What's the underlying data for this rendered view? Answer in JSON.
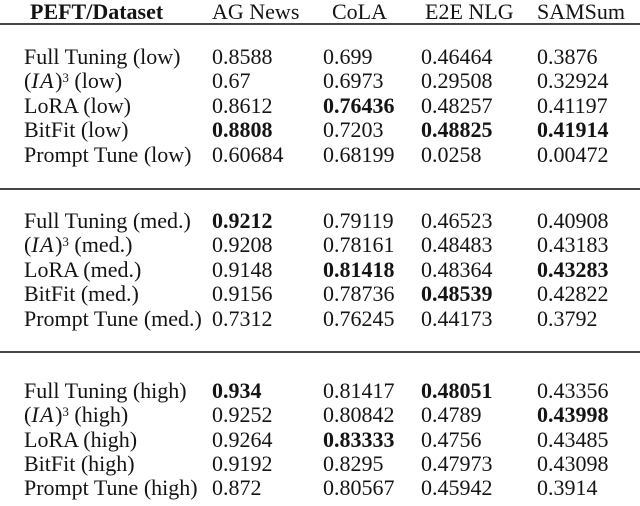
{
  "colors": {
    "background": "#ffffff",
    "text": "#141414",
    "rule": "#454545"
  },
  "table": {
    "columns": [
      {
        "label": "PEFT/Dataset",
        "bold": true
      },
      {
        "label": "AG News",
        "bold": false
      },
      {
        "label": "CoLA",
        "bold": false
      },
      {
        "label": "E2E NLG",
        "bold": false
      },
      {
        "label": "SAMSum",
        "bold": false
      }
    ],
    "sections": [
      {
        "level": "low",
        "rows": [
          {
            "label": {
              "pre": "Full Tuning (low)",
              "it": "",
              "mid": "",
              "sup": "",
              "post": ""
            },
            "values": [
              "0.8588",
              "0.699",
              "0.46464",
              "0.3876"
            ],
            "bold": [
              false,
              false,
              false,
              false
            ]
          },
          {
            "label": {
              "pre": "(",
              "it": "IA",
              "mid": ")",
              "sup": "3",
              "post": " (low)"
            },
            "values": [
              "0.67",
              "0.6973",
              "0.29508",
              "0.32924"
            ],
            "bold": [
              false,
              false,
              false,
              false
            ]
          },
          {
            "label": {
              "pre": "LoRA (low)",
              "it": "",
              "mid": "",
              "sup": "",
              "post": ""
            },
            "values": [
              "0.8612",
              "0.76436",
              "0.48257",
              "0.41197"
            ],
            "bold": [
              false,
              true,
              false,
              false
            ]
          },
          {
            "label": {
              "pre": "BitFit (low)",
              "it": "",
              "mid": "",
              "sup": "",
              "post": ""
            },
            "values": [
              "0.8808",
              "0.7203",
              "0.48825",
              "0.41914"
            ],
            "bold": [
              true,
              false,
              true,
              true
            ]
          },
          {
            "label": {
              "pre": "Prompt Tune (low)",
              "it": "",
              "mid": "",
              "sup": "",
              "post": ""
            },
            "values": [
              "0.60684",
              "0.68199",
              "0.0258",
              "0.00472"
            ],
            "bold": [
              false,
              false,
              false,
              false
            ]
          }
        ]
      },
      {
        "level": "med.",
        "rows": [
          {
            "label": {
              "pre": "Full Tuning (med.)",
              "it": "",
              "mid": "",
              "sup": "",
              "post": ""
            },
            "values": [
              "0.9212",
              "0.79119",
              "0.46523",
              "0.40908"
            ],
            "bold": [
              true,
              false,
              false,
              false
            ]
          },
          {
            "label": {
              "pre": "(",
              "it": "IA",
              "mid": ")",
              "sup": "3",
              "post": " (med.)"
            },
            "values": [
              "0.9208",
              "0.78161",
              "0.48483",
              "0.43183"
            ],
            "bold": [
              false,
              false,
              false,
              false
            ]
          },
          {
            "label": {
              "pre": "LoRA (med.)",
              "it": "",
              "mid": "",
              "sup": "",
              "post": ""
            },
            "values": [
              "0.9148",
              "0.81418",
              "0.48364",
              "0.43283"
            ],
            "bold": [
              false,
              true,
              false,
              true
            ]
          },
          {
            "label": {
              "pre": "BitFit (med.)",
              "it": "",
              "mid": "",
              "sup": "",
              "post": ""
            },
            "values": [
              "0.9156",
              "0.78736",
              "0.48539",
              "0.42822"
            ],
            "bold": [
              false,
              false,
              true,
              false
            ]
          },
          {
            "label": {
              "pre": "Prompt Tune (med.)",
              "it": "",
              "mid": "",
              "sup": "",
              "post": ""
            },
            "values": [
              "0.7312",
              "0.76245",
              "0.44173",
              "0.3792"
            ],
            "bold": [
              false,
              false,
              false,
              false
            ]
          }
        ]
      },
      {
        "level": "high",
        "rows": [
          {
            "label": {
              "pre": "Full Tuning (high)",
              "it": "",
              "mid": "",
              "sup": "",
              "post": ""
            },
            "values": [
              "0.934",
              "0.81417",
              "0.48051",
              "0.43356"
            ],
            "bold": [
              true,
              false,
              true,
              false
            ]
          },
          {
            "label": {
              "pre": "(",
              "it": "IA",
              "mid": ")",
              "sup": "3",
              "post": " (high)"
            },
            "values": [
              "0.9252",
              "0.80842",
              "0.4789",
              "0.43998"
            ],
            "bold": [
              false,
              false,
              false,
              true
            ]
          },
          {
            "label": {
              "pre": "LoRA (high)",
              "it": "",
              "mid": "",
              "sup": "",
              "post": ""
            },
            "values": [
              "0.9264",
              "0.83333",
              "0.4756",
              "0.43485"
            ],
            "bold": [
              false,
              true,
              false,
              false
            ]
          },
          {
            "label": {
              "pre": "BitFit (high)",
              "it": "",
              "mid": "",
              "sup": "",
              "post": ""
            },
            "values": [
              "0.9192",
              "0.8295",
              "0.47973",
              "0.43098"
            ],
            "bold": [
              false,
              false,
              false,
              false
            ]
          },
          {
            "label": {
              "pre": "Prompt Tune (high)",
              "it": "",
              "mid": "",
              "sup": "",
              "post": ""
            },
            "values": [
              "0.872",
              "0.80567",
              "0.45942",
              "0.3914"
            ],
            "bold": [
              false,
              false,
              false,
              false
            ]
          }
        ]
      }
    ]
  }
}
